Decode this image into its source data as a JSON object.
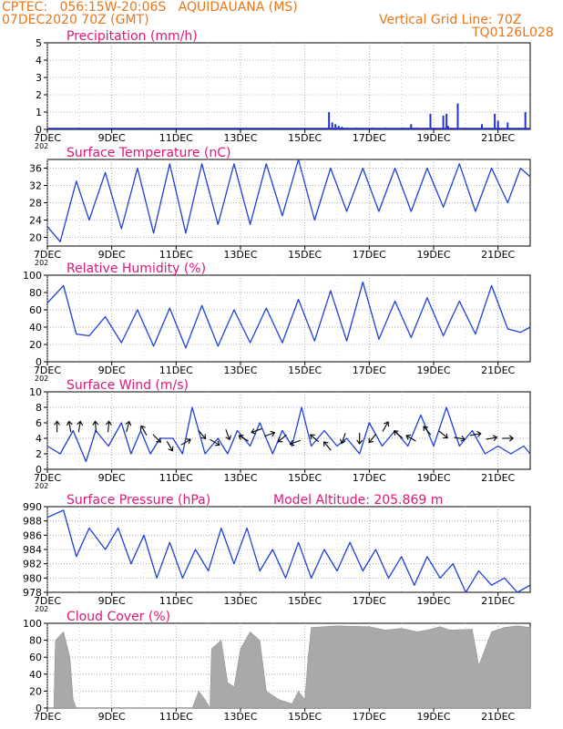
{
  "header": {
    "left_line1": "CPTEC:   056:15W-20:06S   AQUIDAUANA (MS)",
    "left_line2": "07DEC2020 70Z (GMT)",
    "right_line1": "Vertical Grid Line: 70Z",
    "right_line2": "TQ0126L028"
  },
  "x_axis": {
    "labels": [
      "7DEC",
      "9DEC",
      "11DEC",
      "13DEC",
      "15DEC",
      "17DEC",
      "19DEC",
      "21DEC"
    ],
    "year_label": "202",
    "days_span": 15
  },
  "colors": {
    "title": "#e0157a",
    "line": "#1f3fd8",
    "bar_blue": "#2233cc",
    "cloud_gray": "#a9a9a9",
    "header": "#e8761b"
  },
  "chart_data": [
    {
      "id": "precip",
      "type": "bar",
      "title": "Precipitation (mm/h)",
      "ylim": [
        0,
        5
      ],
      "yticks": [
        0,
        1,
        2,
        3,
        4,
        5
      ],
      "grid": true,
      "x_unit": "days since 7DEC",
      "points": [
        [
          8.75,
          1.0
        ],
        [
          8.85,
          0.4
        ],
        [
          8.95,
          0.3
        ],
        [
          9.05,
          0.2
        ],
        [
          9.15,
          0.15
        ],
        [
          9.3,
          0.1
        ],
        [
          9.6,
          0.1
        ],
        [
          10.1,
          0.1
        ],
        [
          10.5,
          0.1
        ],
        [
          11.1,
          0.1
        ],
        [
          11.3,
          0.3
        ],
        [
          11.45,
          0.1
        ],
        [
          11.9,
          0.9
        ],
        [
          12.3,
          0.8
        ],
        [
          12.4,
          0.9
        ],
        [
          12.45,
          0.2
        ],
        [
          12.75,
          1.5
        ],
        [
          13.5,
          0.3
        ],
        [
          13.9,
          0.9
        ],
        [
          14.0,
          0.5
        ],
        [
          14.3,
          0.4
        ],
        [
          14.85,
          1.0
        ]
      ]
    },
    {
      "id": "temp",
      "type": "line",
      "title": "Surface Temperature (nC)",
      "ylim": [
        18,
        38
      ],
      "yticks": [
        20,
        24,
        28,
        32,
        36
      ],
      "grid": true,
      "points": [
        [
          0,
          22.5
        ],
        [
          0.4,
          19
        ],
        [
          0.9,
          33
        ],
        [
          1.3,
          24
        ],
        [
          1.8,
          35
        ],
        [
          2.3,
          22
        ],
        [
          2.8,
          36
        ],
        [
          3.3,
          21
        ],
        [
          3.8,
          37
        ],
        [
          4.3,
          21
        ],
        [
          4.8,
          37
        ],
        [
          5.3,
          23
        ],
        [
          5.8,
          37
        ],
        [
          6.3,
          23
        ],
        [
          6.8,
          37
        ],
        [
          7.3,
          25
        ],
        [
          7.8,
          38
        ],
        [
          8.3,
          24
        ],
        [
          8.8,
          36
        ],
        [
          9.3,
          26
        ],
        [
          9.8,
          36
        ],
        [
          10.3,
          26
        ],
        [
          10.8,
          36
        ],
        [
          11.3,
          26
        ],
        [
          11.8,
          36
        ],
        [
          12.3,
          27
        ],
        [
          12.8,
          37
        ],
        [
          13.3,
          26
        ],
        [
          13.8,
          36
        ],
        [
          14.3,
          28
        ],
        [
          14.7,
          36
        ],
        [
          15.0,
          34
        ]
      ]
    },
    {
      "id": "rh",
      "type": "line",
      "title": "Relative Humidity (%)",
      "ylim": [
        0,
        100
      ],
      "yticks": [
        0,
        20,
        40,
        60,
        80,
        100
      ],
      "grid": true,
      "points": [
        [
          0,
          68
        ],
        [
          0.5,
          88
        ],
        [
          0.9,
          32
        ],
        [
          1.3,
          30
        ],
        [
          1.8,
          52
        ],
        [
          2.3,
          22
        ],
        [
          2.8,
          60
        ],
        [
          3.3,
          18
        ],
        [
          3.8,
          62
        ],
        [
          4.3,
          16
        ],
        [
          4.8,
          65
        ],
        [
          5.3,
          18
        ],
        [
          5.8,
          60
        ],
        [
          6.3,
          22
        ],
        [
          6.8,
          62
        ],
        [
          7.3,
          22
        ],
        [
          7.8,
          72
        ],
        [
          8.3,
          24
        ],
        [
          8.8,
          82
        ],
        [
          9.3,
          24
        ],
        [
          9.8,
          92
        ],
        [
          10.3,
          26
        ],
        [
          10.8,
          70
        ],
        [
          11.3,
          28
        ],
        [
          11.8,
          74
        ],
        [
          12.3,
          30
        ],
        [
          12.8,
          70
        ],
        [
          13.3,
          32
        ],
        [
          13.8,
          88
        ],
        [
          14.3,
          38
        ],
        [
          14.7,
          34
        ],
        [
          15.0,
          40
        ]
      ]
    },
    {
      "id": "wind",
      "type": "line",
      "title": "Surface Wind (m/s)",
      "ylim": [
        0,
        10
      ],
      "yticks": [
        0,
        2,
        4,
        6,
        8,
        10
      ],
      "grid": true,
      "points": [
        [
          0,
          3
        ],
        [
          0.4,
          2
        ],
        [
          0.8,
          5
        ],
        [
          1.2,
          1
        ],
        [
          1.5,
          5
        ],
        [
          1.9,
          3
        ],
        [
          2.3,
          6
        ],
        [
          2.6,
          2
        ],
        [
          2.9,
          5
        ],
        [
          3.2,
          2
        ],
        [
          3.5,
          4
        ],
        [
          3.9,
          4
        ],
        [
          4.2,
          2
        ],
        [
          4.5,
          8
        ],
        [
          4.9,
          2
        ],
        [
          5.3,
          4
        ],
        [
          5.6,
          2
        ],
        [
          5.9,
          5
        ],
        [
          6.3,
          3
        ],
        [
          6.6,
          6
        ],
        [
          7.0,
          2
        ],
        [
          7.3,
          5
        ],
        [
          7.6,
          3
        ],
        [
          7.9,
          8
        ],
        [
          8.2,
          3
        ],
        [
          8.6,
          5
        ],
        [
          9.0,
          3
        ],
        [
          9.3,
          4
        ],
        [
          9.7,
          2
        ],
        [
          10.0,
          6
        ],
        [
          10.4,
          3
        ],
        [
          10.8,
          5
        ],
        [
          11.2,
          3
        ],
        [
          11.6,
          7
        ],
        [
          12.0,
          3
        ],
        [
          12.4,
          8
        ],
        [
          12.8,
          3
        ],
        [
          13.2,
          5
        ],
        [
          13.6,
          2
        ],
        [
          14.0,
          3
        ],
        [
          14.4,
          2
        ],
        [
          14.8,
          3
        ],
        [
          15.0,
          2
        ]
      ],
      "arrows": [
        [
          0.3,
          5.5,
          -90
        ],
        [
          0.7,
          5.5,
          -100
        ],
        [
          1.0,
          5.5,
          -80
        ],
        [
          1.5,
          5.5,
          -95
        ],
        [
          1.9,
          5.5,
          -85
        ],
        [
          2.5,
          5.5,
          -75
        ],
        [
          3.0,
          5.0,
          -120
        ],
        [
          3.4,
          4.0,
          45
        ],
        [
          3.8,
          3.0,
          60
        ],
        [
          4.3,
          3.5,
          -30
        ],
        [
          4.8,
          4.5,
          50
        ],
        [
          5.2,
          3.5,
          30
        ],
        [
          5.6,
          4.5,
          70
        ],
        [
          6.1,
          4.0,
          -150
        ],
        [
          6.5,
          5.0,
          160
        ],
        [
          6.9,
          4.5,
          -20
        ],
        [
          7.3,
          4.0,
          140
        ],
        [
          7.7,
          3.5,
          160
        ],
        [
          8.3,
          4.0,
          -140
        ],
        [
          8.7,
          3.0,
          -130
        ],
        [
          9.2,
          4.0,
          110
        ],
        [
          9.7,
          4.0,
          90
        ],
        [
          10.1,
          4.0,
          130
        ],
        [
          10.5,
          5.5,
          -60
        ],
        [
          10.9,
          4.5,
          -140
        ],
        [
          11.3,
          4.0,
          -150
        ],
        [
          11.8,
          5.0,
          -130
        ],
        [
          12.3,
          4.5,
          40
        ],
        [
          12.8,
          4.0,
          10
        ],
        [
          13.3,
          4.5,
          -10
        ],
        [
          13.8,
          4.0,
          -10
        ],
        [
          14.3,
          4.0,
          0
        ]
      ]
    },
    {
      "id": "pressure",
      "type": "line",
      "title": "Surface Pressure (hPa)",
      "note": "Model Altitude: 205.869 m",
      "ylim": [
        978,
        990
      ],
      "yticks": [
        978,
        980,
        982,
        984,
        986,
        988,
        990
      ],
      "grid": true,
      "points": [
        [
          0,
          988.5
        ],
        [
          0.5,
          989.5
        ],
        [
          0.9,
          983
        ],
        [
          1.3,
          987
        ],
        [
          1.8,
          984
        ],
        [
          2.2,
          987
        ],
        [
          2.6,
          982
        ],
        [
          3.0,
          986
        ],
        [
          3.4,
          980
        ],
        [
          3.8,
          985
        ],
        [
          4.2,
          980
        ],
        [
          4.6,
          984
        ],
        [
          5.0,
          981
        ],
        [
          5.4,
          987
        ],
        [
          5.8,
          982
        ],
        [
          6.2,
          987
        ],
        [
          6.6,
          981
        ],
        [
          7.0,
          984
        ],
        [
          7.4,
          980
        ],
        [
          7.8,
          985
        ],
        [
          8.2,
          980
        ],
        [
          8.6,
          984
        ],
        [
          9.0,
          981
        ],
        [
          9.4,
          985
        ],
        [
          9.8,
          981
        ],
        [
          10.2,
          984
        ],
        [
          10.6,
          980
        ],
        [
          11.0,
          983
        ],
        [
          11.4,
          979
        ],
        [
          11.8,
          983
        ],
        [
          12.2,
          980
        ],
        [
          12.6,
          982
        ],
        [
          13.0,
          978
        ],
        [
          13.4,
          981
        ],
        [
          13.8,
          979
        ],
        [
          14.2,
          980
        ],
        [
          14.6,
          978
        ],
        [
          15.0,
          979
        ]
      ]
    },
    {
      "id": "cloud",
      "type": "area",
      "title": "Cloud Cover (%)",
      "ylim": [
        0,
        100
      ],
      "yticks": [
        0,
        20,
        40,
        60,
        80,
        100
      ],
      "grid": true,
      "points": [
        [
          0,
          0
        ],
        [
          0.2,
          0
        ],
        [
          0.25,
          80
        ],
        [
          0.5,
          90
        ],
        [
          0.7,
          60
        ],
        [
          0.8,
          10
        ],
        [
          0.9,
          0
        ],
        [
          2.0,
          0
        ],
        [
          4.5,
          0
        ],
        [
          4.7,
          20
        ],
        [
          4.9,
          10
        ],
        [
          5.05,
          0
        ],
        [
          5.1,
          70
        ],
        [
          5.4,
          80
        ],
        [
          5.6,
          30
        ],
        [
          5.8,
          25
        ],
        [
          6.0,
          70
        ],
        [
          6.3,
          90
        ],
        [
          6.6,
          80
        ],
        [
          6.8,
          20
        ],
        [
          7.2,
          10
        ],
        [
          7.6,
          5
        ],
        [
          7.8,
          20
        ],
        [
          8.0,
          10
        ],
        [
          8.1,
          60
        ],
        [
          8.2,
          95
        ],
        [
          9.0,
          97
        ],
        [
          10.0,
          96
        ],
        [
          10.5,
          92
        ],
        [
          11.0,
          94
        ],
        [
          11.5,
          90
        ],
        [
          11.8,
          92
        ],
        [
          12.2,
          96
        ],
        [
          12.5,
          92
        ],
        [
          13.2,
          93
        ],
        [
          13.4,
          50
        ],
        [
          13.8,
          90
        ],
        [
          14.2,
          95
        ],
        [
          14.6,
          97
        ],
        [
          15.0,
          95
        ]
      ]
    }
  ]
}
